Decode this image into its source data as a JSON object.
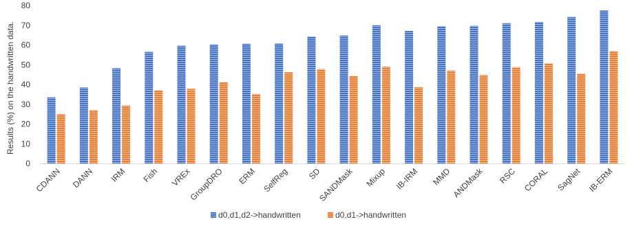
{
  "chart_data": {
    "type": "bar",
    "ylabel": "Results (%) on the handwritten data.",
    "ylim": [
      0,
      80
    ],
    "yticks": [
      0,
      10,
      20,
      30,
      40,
      50,
      60,
      70,
      80
    ],
    "grid": false,
    "legend_position": "bottom",
    "categories": [
      "CDANN",
      "DANN",
      "IRM",
      "Fish",
      "VREx",
      "GroupDRO",
      "ERM",
      "SelfReg",
      "SD",
      "SANDMask",
      "Mixup",
      "IB-IRM",
      "MMD",
      "ANDMask",
      "RSC",
      "CORAL",
      "SagNet",
      "IB-ERM"
    ],
    "series": [
      {
        "name": "d0,d1,d2->handwritten",
        "color": "#4472C4",
        "values": [
          33.5,
          38.5,
          48.2,
          56.5,
          59.6,
          60.3,
          60.6,
          60.7,
          64.3,
          64.8,
          70.0,
          67.1,
          69.5,
          69.7,
          71.0,
          71.7,
          74.2,
          77.5
        ]
      },
      {
        "name": "d0,d1->handwritten",
        "color": "#ED7D31",
        "values": [
          25.0,
          27.0,
          29.3,
          37.0,
          37.8,
          41.2,
          35.2,
          46.2,
          47.8,
          44.3,
          49.0,
          38.6,
          47.0,
          44.8,
          48.8,
          50.7,
          45.5,
          56.7
        ]
      }
    ]
  }
}
